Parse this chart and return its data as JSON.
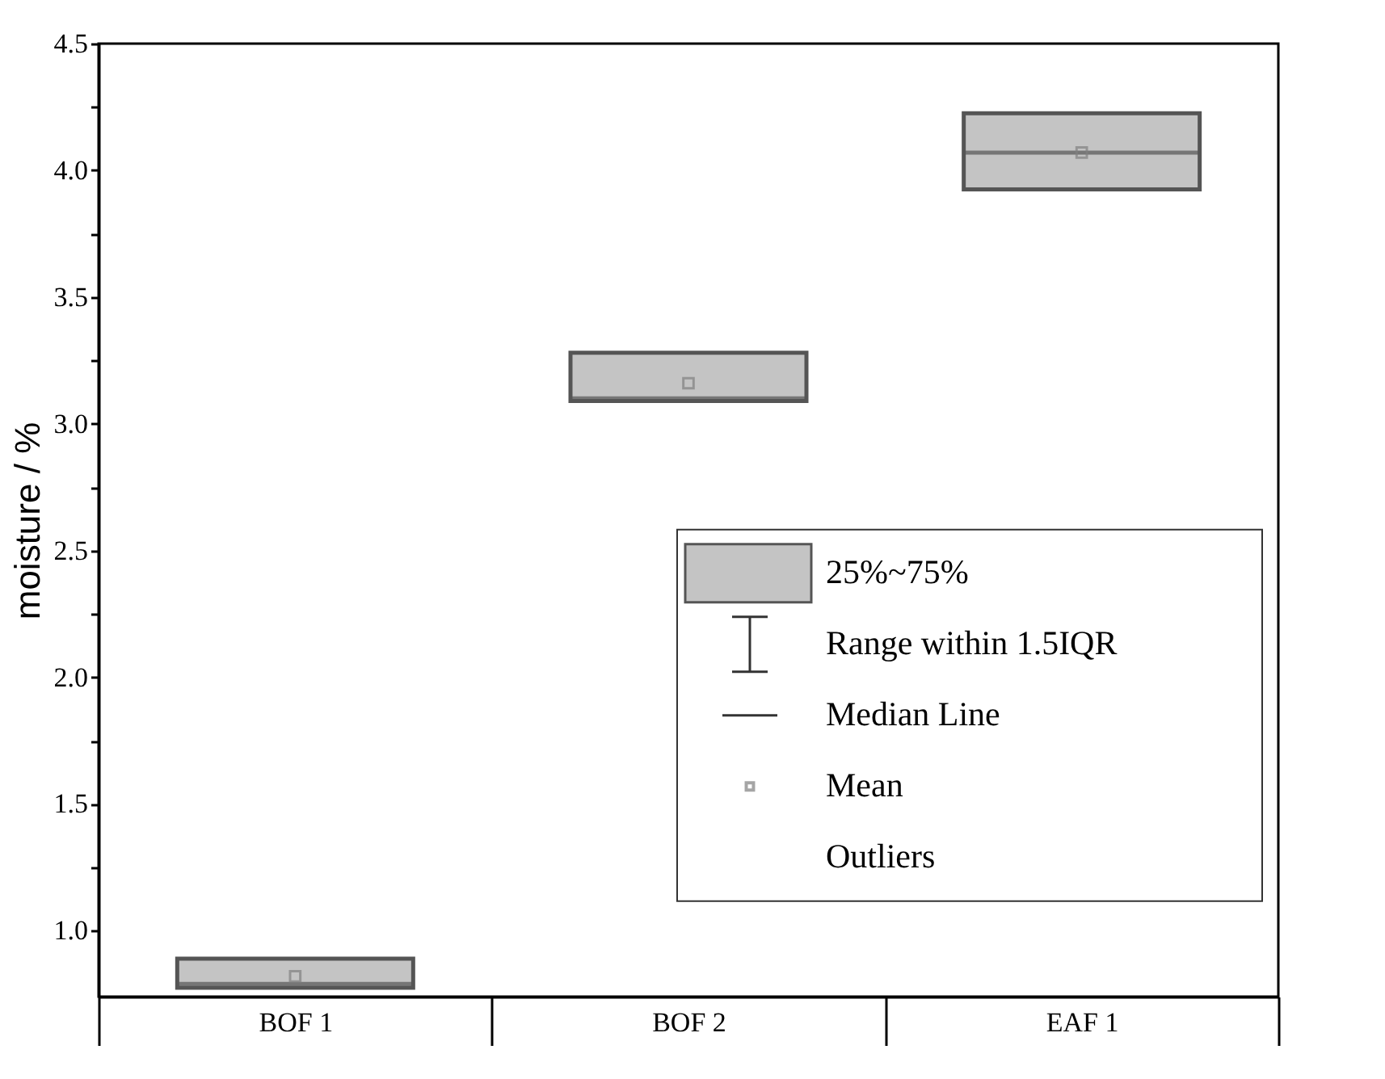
{
  "chart_data": {
    "type": "box",
    "ylabel": "moisture / %",
    "categories": [
      "BOF 1",
      "BOF 2",
      "EAF 1"
    ],
    "boxes": [
      {
        "low": 0.775,
        "q1": 0.775,
        "median": 0.79,
        "q3": 0.89,
        "high": 0.89,
        "mean": 0.82
      },
      {
        "low": 3.09,
        "q1": 3.09,
        "median": 3.1,
        "q3": 3.28,
        "high": 3.28,
        "mean": 3.16
      },
      {
        "low": 3.925,
        "q1": 3.925,
        "median": 4.07,
        "q3": 4.225,
        "high": 4.225,
        "mean": 4.07
      }
    ],
    "color": "#c4c4c4",
    "ylim": [
      0.74,
      4.5
    ],
    "yticks": [
      {
        "value": 1,
        "label": "1.0"
      },
      {
        "value": 1.25,
        "label": null
      },
      1.5,
      {
        "value": 1.75,
        "label": null
      },
      {
        "value": 2,
        "label": "2.0"
      },
      {
        "value": 2.25,
        "label": null
      },
      2.5,
      {
        "value": 2.75,
        "label": null
      },
      {
        "value": 3,
        "label": "3.0"
      },
      {
        "value": 3.25,
        "label": null
      },
      3.5,
      {
        "value": 3.75,
        "label": null
      },
      {
        "value": 4,
        "label": "4.0"
      },
      {
        "value": 4.25,
        "label": null
      },
      4.5
    ],
    "annotations": [
      "25%~75%",
      "Range within 1.5IQR",
      "Median Line",
      "Mean",
      "Outliers"
    ],
    "grid": false
  }
}
